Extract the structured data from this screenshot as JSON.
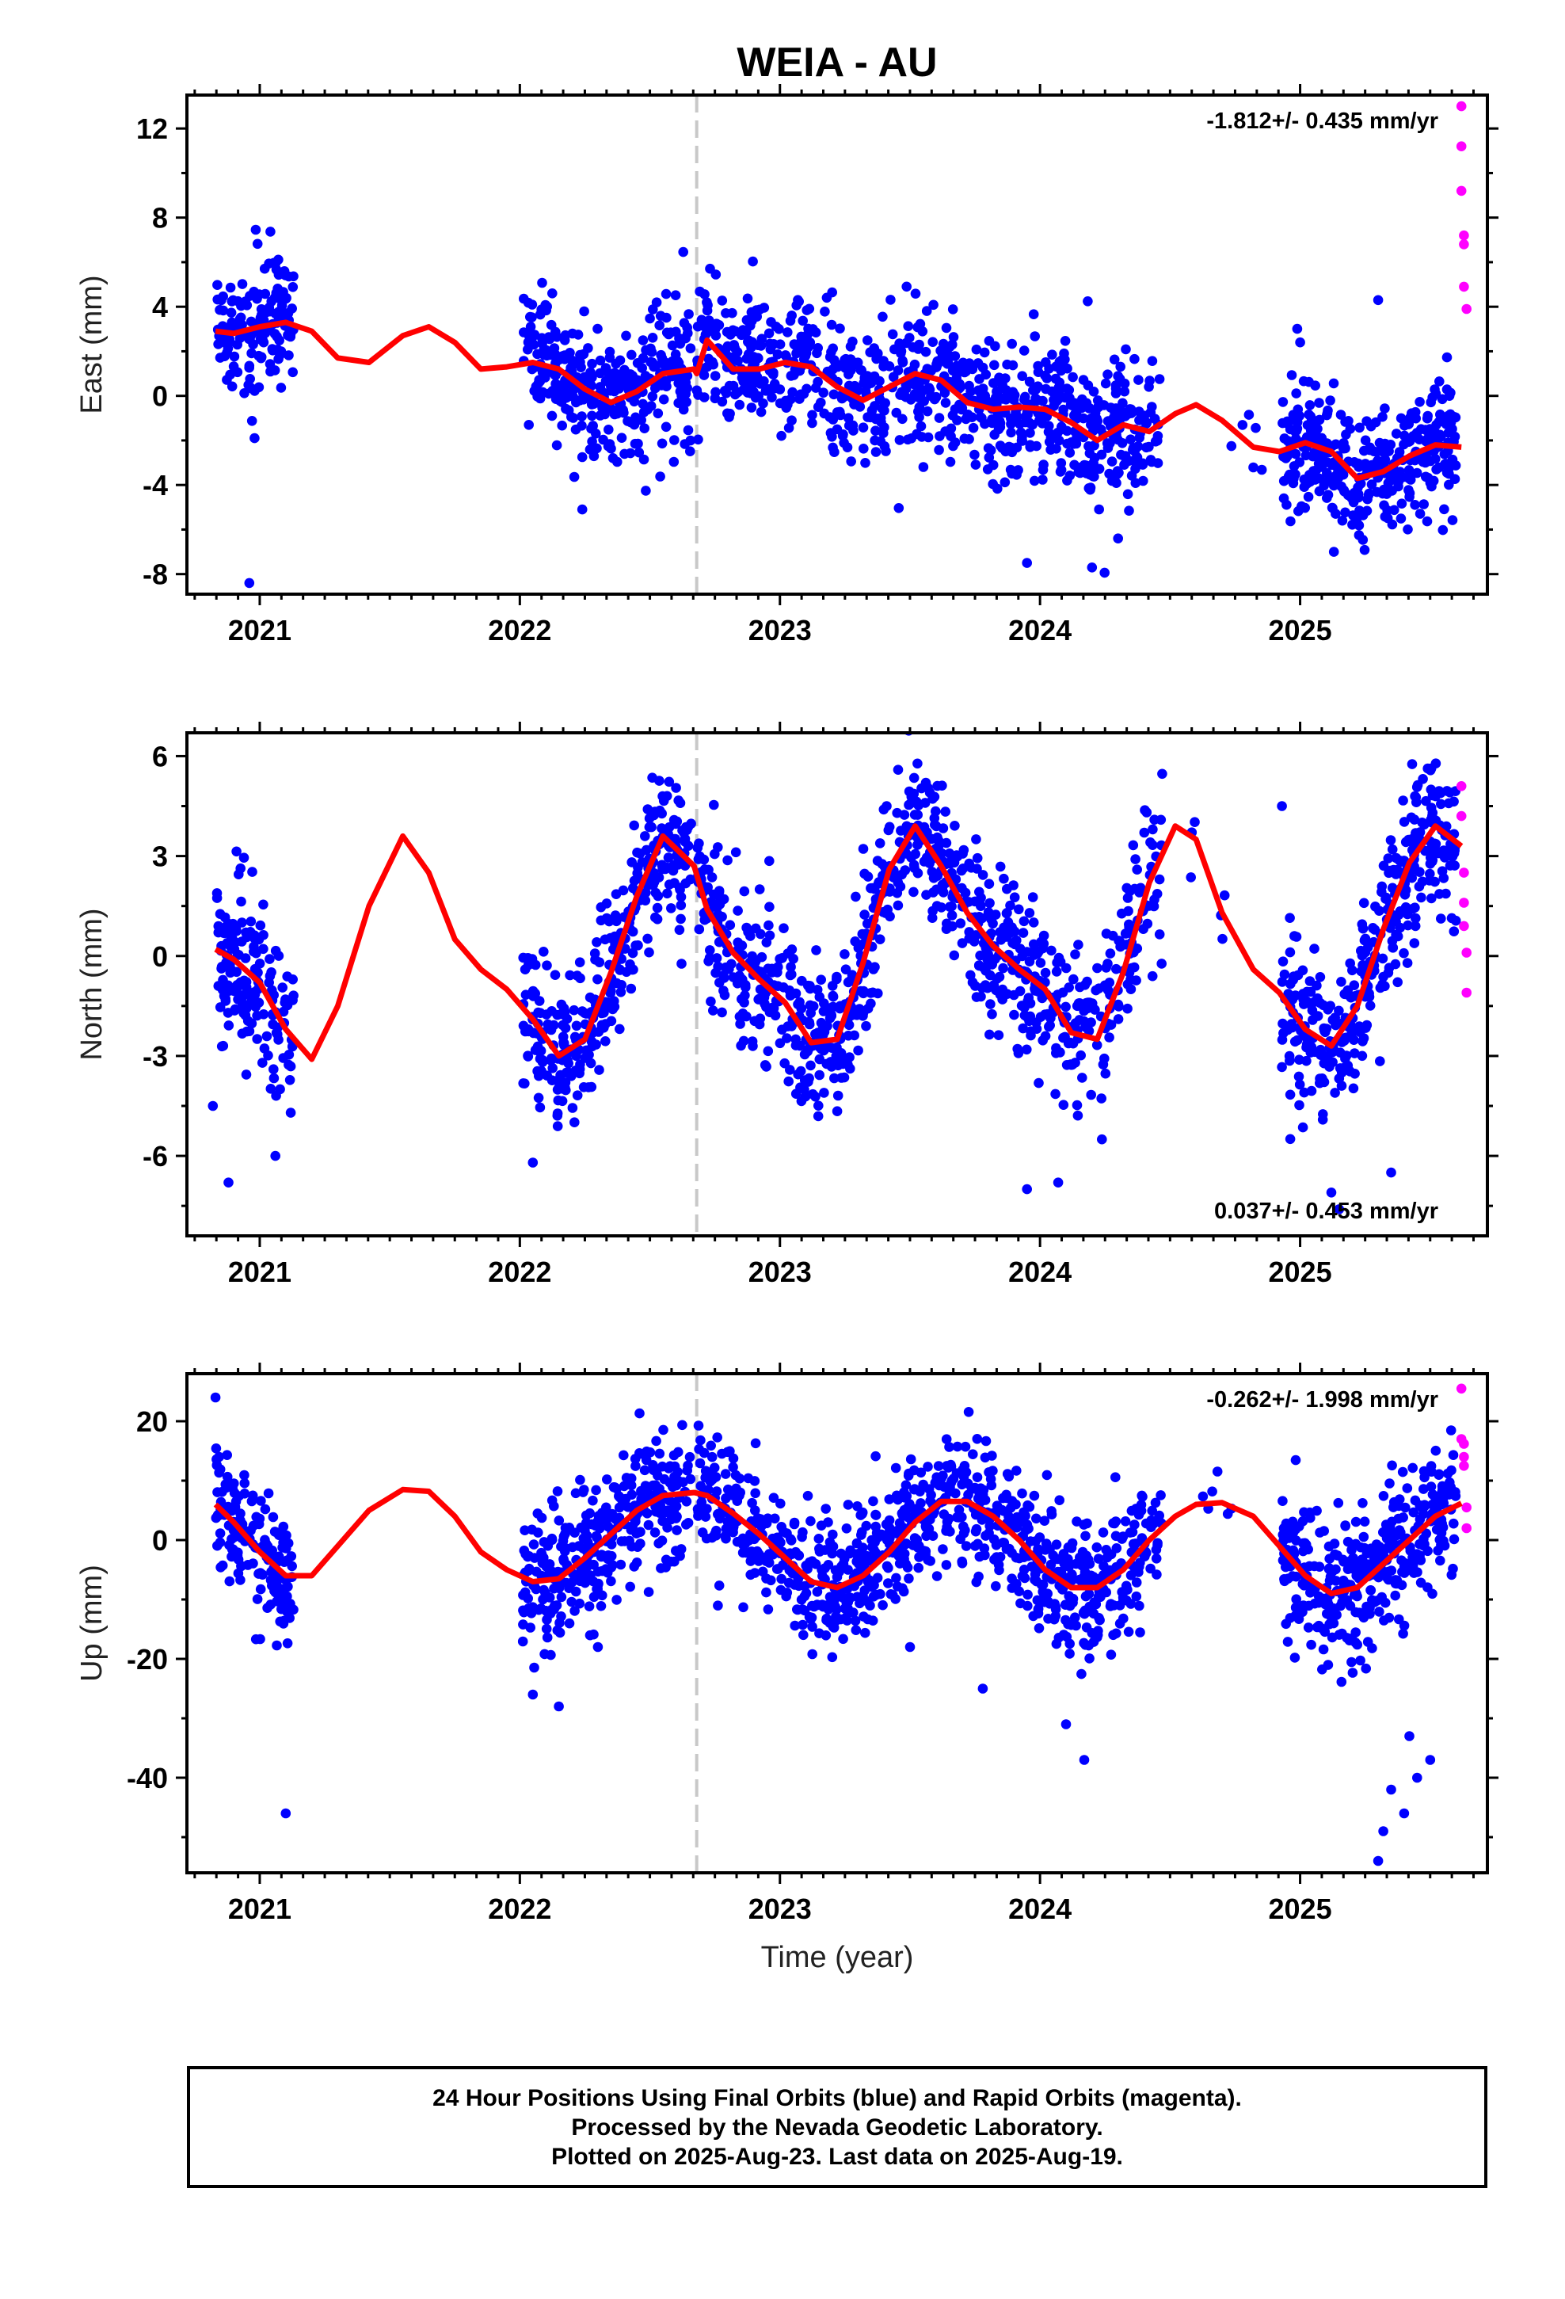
{
  "title": "WEIA - AU",
  "xlabel": "Time (year)",
  "caption": {
    "line1": "24 Hour Positions Using Final Orbits (blue) and Rapid Orbits (magenta).",
    "line2": "Processed by the Nevada Geodetic Laboratory.",
    "line3": "Plotted on 2025-Aug-23. Last data on 2025-Aug-19."
  },
  "colors": {
    "final": "#0000ff",
    "rapid": "#ff00ff",
    "model": "#ff0000",
    "break": "#c8c8c8"
  },
  "chart_data": [
    {
      "type": "scatter",
      "component": "East",
      "ylabel": "East (mm)",
      "rate": "-1.812+/- 0.435 mm/yr",
      "xlim": [
        2020.72,
        2025.72
      ],
      "ylim": [
        -8.9,
        13.5
      ],
      "xticks": [
        2021,
        2022,
        2023,
        2024,
        2025
      ],
      "xtick_labels": [
        "2021",
        "2022",
        "2023",
        "2024",
        "2025"
      ],
      "yticks": [
        -8,
        -4,
        0,
        4,
        8,
        12
      ],
      "ytick_labels": [
        "-8",
        "-4",
        "0",
        "4",
        "8",
        "12"
      ],
      "equipment_change": 2022.68,
      "model": {
        "x": [
          2020.83,
          2020.9,
          2021.0,
          2021.1,
          2021.2,
          2021.3,
          2021.42,
          2021.55,
          2021.65,
          2021.75,
          2021.85,
          2021.95,
          2022.05,
          2022.15,
          2022.25,
          2022.35,
          2022.45,
          2022.55,
          2022.67,
          2022.68,
          2022.72,
          2022.82,
          2022.92,
          2023.02,
          2023.12,
          2023.22,
          2023.32,
          2023.42,
          2023.52,
          2023.62,
          2023.72,
          2023.82,
          2023.92,
          2024.02,
          2024.12,
          2024.22,
          2024.32,
          2024.42,
          2024.52,
          2024.6,
          2024.7,
          2024.82,
          2024.92,
          2025.02,
          2025.12,
          2025.22,
          2025.32,
          2025.42,
          2025.52,
          2025.62
        ],
        "y": [
          2.9,
          2.8,
          3.1,
          3.3,
          2.9,
          1.7,
          1.5,
          2.7,
          3.1,
          2.4,
          1.2,
          1.3,
          1.5,
          1.2,
          0.3,
          -0.3,
          0.2,
          1.0,
          1.2,
          1.0,
          2.5,
          1.2,
          1.2,
          1.5,
          1.3,
          0.4,
          -0.2,
          0.4,
          1.0,
          0.7,
          -0.3,
          -0.6,
          -0.5,
          -0.6,
          -1.2,
          -2.0,
          -1.3,
          -1.6,
          -0.8,
          -0.4,
          -1.1,
          -2.3,
          -2.5,
          -2.1,
          -2.5,
          -3.7,
          -3.4,
          -2.7,
          -2.2,
          -2.3
        ]
      },
      "rapid": {
        "x": [
          2025.62,
          2025.62,
          2025.62,
          2025.63,
          2025.63,
          2025.63,
          2025.64
        ],
        "y": [
          13.0,
          11.2,
          9.2,
          7.2,
          6.8,
          4.9,
          3.9
        ]
      },
      "final": {
        "clusters": [
          {
            "from": 2020.83,
            "to": 2021.13,
            "n": 160,
            "spread": 1.5
          },
          {
            "from": 2022.01,
            "to": 2022.66,
            "n": 330,
            "spread": 1.55
          },
          {
            "from": 2022.68,
            "to": 2024.47,
            "n": 820,
            "spread": 1.6
          },
          {
            "from": 2024.68,
            "to": 2024.88,
            "n": 6,
            "spread": 1.1
          },
          {
            "from": 2024.93,
            "to": 2025.6,
            "n": 360,
            "spread": 1.4
          }
        ],
        "outliers": {
          "x": [
            2020.96,
            2020.98,
            2022.24,
            2023.95,
            2024.2,
            2024.3,
            2025.0,
            2025.13,
            2025.3
          ],
          "y": [
            -8.4,
            -1.9,
            -5.1,
            -7.5,
            -7.7,
            -6.4,
            2.4,
            -7.0,
            4.3
          ]
        }
      }
    },
    {
      "type": "scatter",
      "component": "North",
      "ylabel": "North (mm)",
      "rate": "0.037+/- 0.453 mm/yr",
      "xlim": [
        2020.72,
        2025.72
      ],
      "ylim": [
        -8.4,
        6.7
      ],
      "xticks": [
        2021,
        2022,
        2023,
        2024,
        2025
      ],
      "xtick_labels": [
        "2021",
        "2022",
        "2023",
        "2024",
        "2025"
      ],
      "yticks": [
        -6,
        -3,
        0,
        3,
        6
      ],
      "ytick_labels": [
        "-6",
        "-3",
        "0",
        "3",
        "6"
      ],
      "equipment_change": 2022.68,
      "model": {
        "x": [
          2020.83,
          2020.9,
          2021.0,
          2021.1,
          2021.2,
          2021.3,
          2021.42,
          2021.55,
          2021.65,
          2021.75,
          2021.85,
          2021.95,
          2022.05,
          2022.15,
          2022.25,
          2022.35,
          2022.45,
          2022.55,
          2022.67,
          2022.72,
          2022.82,
          2022.92,
          2023.02,
          2023.12,
          2023.22,
          2023.32,
          2023.42,
          2023.52,
          2023.62,
          2023.72,
          2023.82,
          2023.92,
          2024.02,
          2024.12,
          2024.22,
          2024.32,
          2024.42,
          2024.52,
          2024.6,
          2024.7,
          2024.82,
          2024.92,
          2025.02,
          2025.12,
          2025.22,
          2025.32,
          2025.42,
          2025.52,
          2025.62
        ],
        "y": [
          0.2,
          -0.1,
          -0.8,
          -2.2,
          -3.1,
          -1.5,
          1.5,
          3.6,
          2.5,
          0.5,
          -0.4,
          -1.0,
          -1.9,
          -3.0,
          -2.5,
          -0.5,
          1.8,
          3.6,
          2.7,
          1.4,
          0.1,
          -0.7,
          -1.4,
          -2.6,
          -2.5,
          -0.2,
          2.6,
          3.9,
          2.7,
          1.3,
          0.3,
          -0.4,
          -1.0,
          -2.3,
          -2.5,
          -0.5,
          2.2,
          3.9,
          3.5,
          1.3,
          -0.4,
          -1.1,
          -2.2,
          -2.7,
          -1.5,
          0.8,
          2.8,
          3.9,
          3.3
        ]
      },
      "rapid": {
        "x": [
          2025.62,
          2025.62,
          2025.63,
          2025.63,
          2025.63,
          2025.64,
          2025.64
        ],
        "y": [
          5.1,
          4.2,
          2.5,
          1.6,
          0.9,
          0.1,
          -1.1
        ]
      },
      "final": {
        "clusters": [
          {
            "from": 2020.83,
            "to": 2021.13,
            "n": 160,
            "spread": 1.2
          },
          {
            "from": 2022.01,
            "to": 2022.66,
            "n": 330,
            "spread": 1.1
          },
          {
            "from": 2022.68,
            "to": 2024.47,
            "n": 820,
            "spread": 1.15
          },
          {
            "from": 2024.55,
            "to": 2024.75,
            "n": 6,
            "spread": 0.6
          },
          {
            "from": 2024.93,
            "to": 2025.6,
            "n": 360,
            "spread": 1.15
          }
        ],
        "outliers": {
          "x": [
            2020.88,
            2020.82,
            2021.06,
            2022.05,
            2023.95,
            2024.07,
            2024.93,
            2025.12,
            2025.15,
            2025.35
          ],
          "y": [
            -6.8,
            -4.5,
            -6.0,
            -6.2,
            -7.0,
            -6.8,
            4.5,
            -7.1,
            -7.6,
            -6.5
          ]
        }
      }
    },
    {
      "type": "scatter",
      "component": "Up",
      "ylabel": "Up (mm)",
      "rate": "-0.262+/- 1.998 mm/yr",
      "xlim": [
        2020.72,
        2025.72
      ],
      "ylim": [
        -56,
        28
      ],
      "xticks": [
        2021,
        2022,
        2023,
        2024,
        2025
      ],
      "xtick_labels": [
        "2021",
        "2022",
        "2023",
        "2024",
        "2025"
      ],
      "yticks": [
        -40,
        -20,
        0,
        20
      ],
      "ytick_labels": [
        "-40",
        "-20",
        "0",
        "20"
      ],
      "equipment_change": 2022.68,
      "model": {
        "x": [
          2020.83,
          2020.9,
          2021.0,
          2021.1,
          2021.2,
          2021.3,
          2021.42,
          2021.55,
          2021.65,
          2021.75,
          2021.85,
          2021.95,
          2022.05,
          2022.15,
          2022.25,
          2022.35,
          2022.45,
          2022.55,
          2022.67,
          2022.72,
          2022.82,
          2022.92,
          2023.02,
          2023.12,
          2023.22,
          2023.32,
          2023.42,
          2023.52,
          2023.62,
          2023.72,
          2023.82,
          2023.92,
          2024.02,
          2024.12,
          2024.22,
          2024.32,
          2024.42,
          2024.52,
          2024.6,
          2024.7,
          2024.82,
          2024.92,
          2025.02,
          2025.12,
          2025.22,
          2025.32,
          2025.42,
          2025.52,
          2025.62
        ],
        "y": [
          6,
          3,
          -2,
          -6,
          -6,
          -1,
          5,
          8.5,
          8.2,
          4,
          -2,
          -5,
          -7,
          -6.5,
          -3,
          1,
          5,
          7.5,
          8,
          7.5,
          4.5,
          1,
          -3,
          -7,
          -8,
          -6,
          -2,
          3,
          6.5,
          6.5,
          4,
          0,
          -5,
          -8,
          -8,
          -5,
          0,
          4,
          6,
          6.3,
          4,
          -1,
          -6,
          -9,
          -8,
          -4,
          0,
          4,
          6.2
        ]
      },
      "rapid": {
        "x": [
          2025.62,
          2025.62,
          2025.63,
          2025.63,
          2025.63,
          2025.64,
          2025.64
        ],
        "y": [
          25.5,
          17.0,
          16.2,
          14.0,
          12.5,
          5.5,
          2.0
        ]
      },
      "final": {
        "clusters": [
          {
            "from": 2020.83,
            "to": 2021.13,
            "n": 160,
            "spread": 5.5
          },
          {
            "from": 2022.01,
            "to": 2022.66,
            "n": 330,
            "spread": 5.5
          },
          {
            "from": 2022.68,
            "to": 2024.47,
            "n": 820,
            "spread": 5.8
          },
          {
            "from": 2024.55,
            "to": 2024.75,
            "n": 6,
            "spread": 3.0
          },
          {
            "from": 2024.93,
            "to": 2025.6,
            "n": 360,
            "spread": 6.0
          }
        ],
        "outliers": {
          "x": [
            2020.83,
            2021.1,
            2022.05,
            2022.15,
            2022.3,
            2023.5,
            2023.78,
            2024.1,
            2024.17,
            2025.3,
            2025.32,
            2025.4,
            2025.45,
            2025.5,
            2025.35,
            2025.42
          ],
          "y": [
            24,
            -46,
            -26,
            -28,
            -18,
            -18,
            -25,
            -31,
            -37,
            -54,
            -49,
            -46,
            -40,
            -37,
            -42,
            -33
          ]
        }
      }
    }
  ]
}
